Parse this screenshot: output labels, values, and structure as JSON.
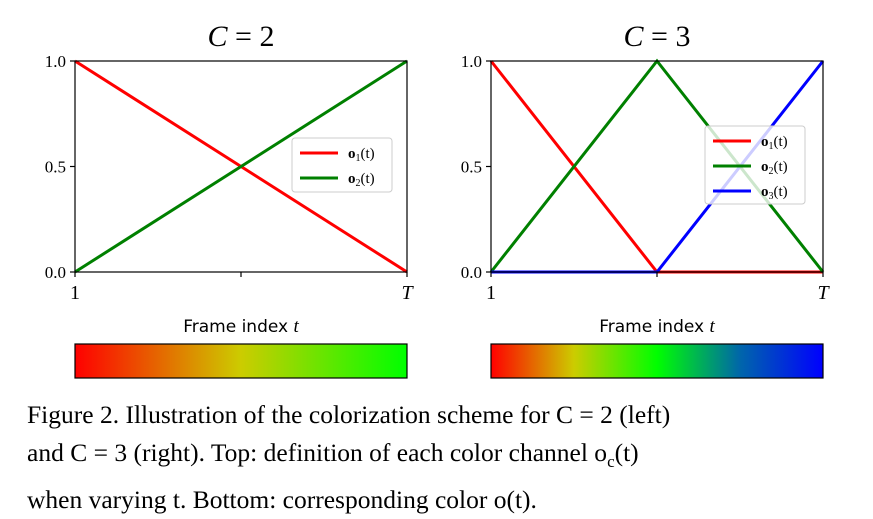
{
  "chart_data": [
    {
      "type": "line",
      "title": "C = 2",
      "xlabel": "Frame index t",
      "ylabel": "",
      "x": [
        0,
        1
      ],
      "xlim": [
        0,
        1
      ],
      "ylim": [
        0,
        1
      ],
      "x_ticks": [
        "1",
        "",
        "T"
      ],
      "y_ticks": [
        "0.0",
        "0.5",
        "1.0"
      ],
      "grid": false,
      "legend_position": "center-right",
      "series": [
        {
          "name": "o1(t)",
          "color": "#ff0000",
          "x": [
            0,
            1
          ],
          "values": [
            1,
            0
          ]
        },
        {
          "name": "o2(t)",
          "color": "#008000",
          "x": [
            0,
            1
          ],
          "values": [
            0,
            1
          ]
        }
      ],
      "colorbar": {
        "colors": [
          "#ff0000",
          "#cccc00",
          "#00ff00"
        ]
      }
    },
    {
      "type": "line",
      "title": "C = 3",
      "xlabel": "Frame index t",
      "ylabel": "",
      "x": [
        0,
        0.5,
        1
      ],
      "xlim": [
        0,
        1
      ],
      "ylim": [
        0,
        1
      ],
      "x_ticks": [
        "1",
        "",
        "T"
      ],
      "y_ticks": [
        "0.0",
        "0.5",
        "1.0"
      ],
      "grid": false,
      "legend_position": "upper-right",
      "series": [
        {
          "name": "o1(t)",
          "color": "#ff0000",
          "x": [
            0,
            0.5,
            1
          ],
          "values": [
            1,
            0,
            0
          ]
        },
        {
          "name": "o2(t)",
          "color": "#008000",
          "x": [
            0,
            0.5,
            1
          ],
          "values": [
            0,
            1,
            0
          ]
        },
        {
          "name": "o3(t)",
          "color": "#0000ff",
          "x": [
            0,
            0.5,
            1
          ],
          "values": [
            0,
            0,
            1
          ]
        }
      ],
      "colorbar": {
        "colors": [
          "#ff0000",
          "#cccc00",
          "#00ff00",
          "#0066aa",
          "#0000ff"
        ]
      }
    }
  ],
  "caption": {
    "line1": "Figure 2. Illustration of the colorization scheme for C = 2 (left)",
    "line2": "and C = 3 (right). Top: definition of each color channel o",
    "line2_sub": "c",
    "line2_tail": "(t)",
    "line3": "when varying t. Bottom: corresponding color o(t)."
  }
}
